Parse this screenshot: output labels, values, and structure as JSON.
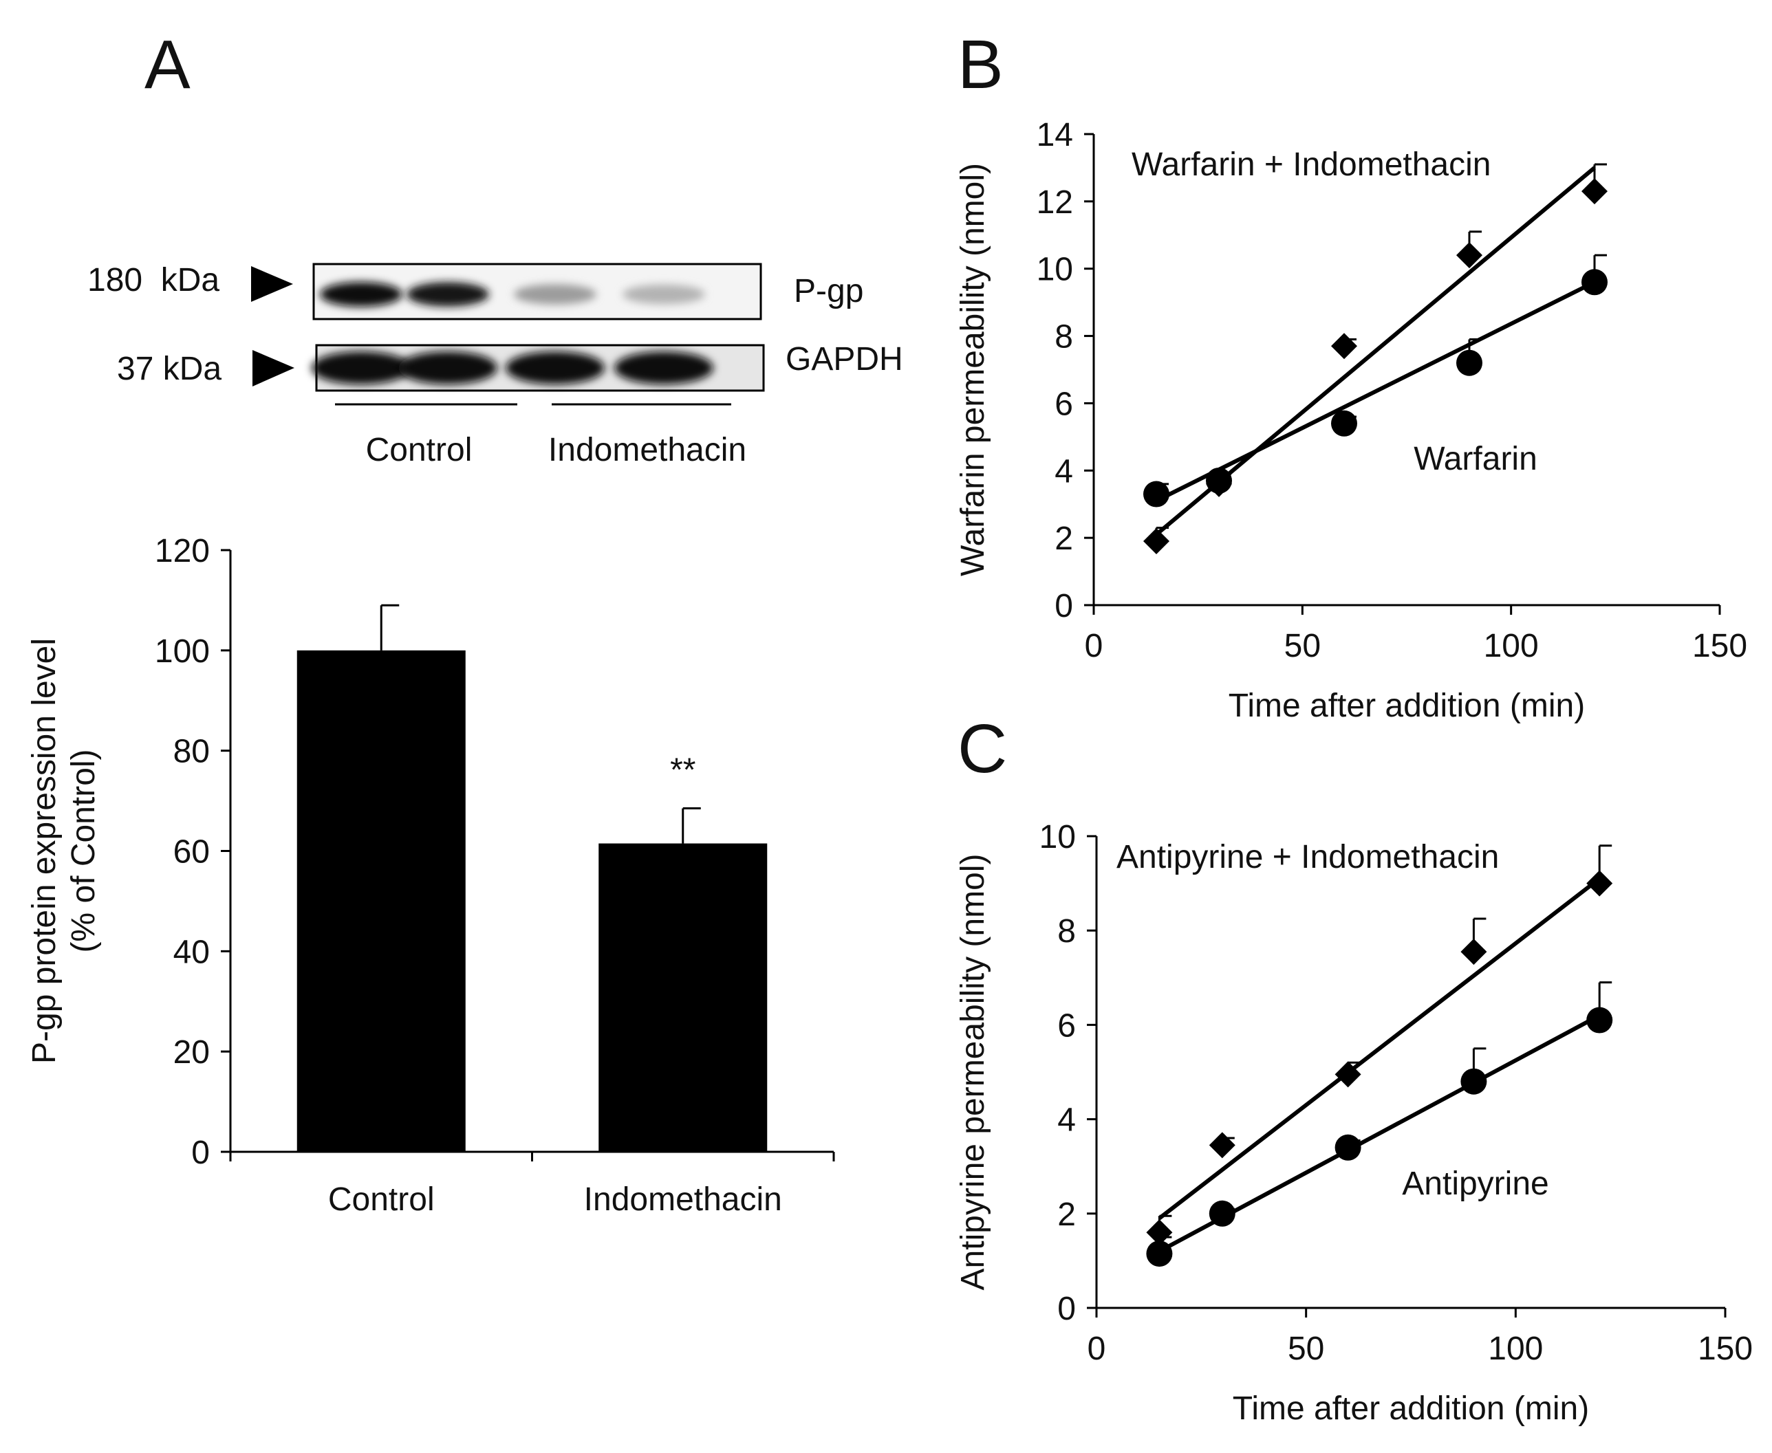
{
  "panels": {
    "a": "A",
    "b": "B",
    "c": "C"
  },
  "blot": {
    "markers": [
      {
        "label": "180  kDa",
        "band": "P-gp"
      },
      {
        "label": "37 kDa",
        "band": "GAPDH"
      }
    ],
    "groups": [
      "Control",
      "Indomethacin"
    ],
    "pgp_intensity": [
      1.0,
      0.95,
      0.35,
      0.25
    ],
    "gapdh_intensity": [
      1.0,
      0.9,
      0.9,
      0.9
    ]
  },
  "chart_data": [
    {
      "id": "A",
      "type": "bar",
      "categories": [
        "Control",
        "Indomethacin"
      ],
      "values": [
        100,
        61.5
      ],
      "errors": [
        9,
        7
      ],
      "annotations": [
        "",
        "**"
      ],
      "ylabel": [
        "P-gp protein expression level",
        "(% of Control)"
      ],
      "ylim": [
        0,
        120
      ],
      "yticks": [
        0,
        20,
        40,
        60,
        80,
        100,
        120
      ],
      "color": "#000000"
    },
    {
      "id": "B",
      "type": "scatter",
      "xlabel": "Time after addition (min)",
      "ylabel": "Warfarin permeability (nmol)",
      "xlim": [
        0,
        150
      ],
      "ylim": [
        0,
        14
      ],
      "xticks": [
        0,
        50,
        100,
        150
      ],
      "yticks": [
        0,
        2,
        4,
        6,
        8,
        10,
        12,
        14
      ],
      "series": [
        {
          "name": "Warfarin + Indomethacin",
          "marker": "diamond",
          "x": [
            15,
            30,
            60,
            90,
            120
          ],
          "y": [
            1.9,
            3.6,
            7.7,
            10.4,
            12.3
          ],
          "err": [
            0.4,
            0.3,
            0.2,
            0.7,
            0.8
          ],
          "fit": [
            [
              15,
              2.1
            ],
            [
              120,
              13.0
            ]
          ]
        },
        {
          "name": "Warfarin",
          "marker": "circle",
          "x": [
            15,
            30,
            60,
            90,
            120
          ],
          "y": [
            3.3,
            3.7,
            5.4,
            7.2,
            9.6
          ],
          "err": [
            0.3,
            0.2,
            0.2,
            0.7,
            0.8
          ],
          "fit": [
            [
              15,
              3.1
            ],
            [
              120,
              9.6
            ]
          ]
        }
      ]
    },
    {
      "id": "C",
      "type": "scatter",
      "xlabel": "Time after addition (min)",
      "ylabel": "Antipyrine permeability (nmol)",
      "xlim": [
        0,
        150
      ],
      "ylim": [
        0,
        10
      ],
      "xticks": [
        0,
        50,
        100,
        150
      ],
      "yticks": [
        0,
        2,
        4,
        6,
        8,
        10
      ],
      "series": [
        {
          "name": "Antipyrine + Indomethacin",
          "marker": "diamond",
          "x": [
            15,
            30,
            60,
            90,
            120
          ],
          "y": [
            1.6,
            3.45,
            4.95,
            7.55,
            9.0
          ],
          "err": [
            0.35,
            0.15,
            0.25,
            0.7,
            0.8
          ],
          "fit": [
            [
              15,
              1.9
            ],
            [
              120,
              9.1
            ]
          ]
        },
        {
          "name": "Antipyrine",
          "marker": "circle",
          "x": [
            15,
            30,
            60,
            90,
            120
          ],
          "y": [
            1.15,
            2.0,
            3.4,
            4.8,
            6.1
          ],
          "err": [
            0.35,
            0.1,
            0.15,
            0.7,
            0.8
          ],
          "fit": [
            [
              15,
              1.2
            ],
            [
              120,
              6.2
            ]
          ]
        }
      ]
    }
  ]
}
